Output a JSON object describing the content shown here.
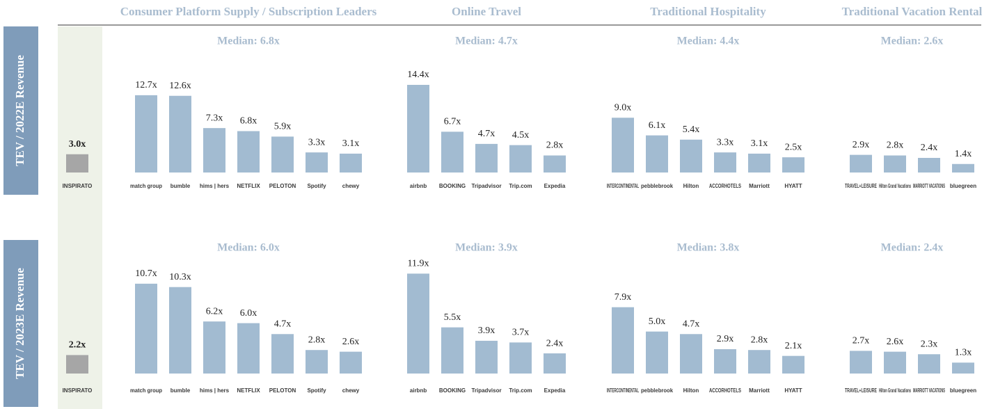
{
  "segments": [
    "Consumer Platform Supply / Subscription Leaders",
    "Online Travel",
    "Traditional Hospitality",
    "Traditional Vacation Rental"
  ],
  "color": "#a2bbd1",
  "base_color": "#a6a6a6",
  "chart_data": [
    {
      "type": "bar",
      "y_label": "TEV / 2022E Revenue",
      "ylim": [
        0,
        16
      ],
      "base": {
        "category": "INSPIRATO",
        "value": 3.0,
        "value_label": "3.0x"
      },
      "groups": [
        {
          "median": "Median: 6.8x",
          "categories": [
            "match group",
            "bumble",
            "hims | hers",
            "NETFLIX",
            "PELOTON",
            "Spotify",
            "chewy"
          ],
          "values": [
            12.7,
            12.6,
            7.3,
            6.8,
            5.9,
            3.3,
            3.1
          ],
          "value_labels": [
            "12.7x",
            "12.6x",
            "7.3x",
            "6.8x",
            "5.9x",
            "3.3x",
            "3.1x"
          ]
        },
        {
          "median": "Median: 4.7x",
          "categories": [
            "airbnb",
            "BOOKING",
            "Tripadvisor",
            "Trip.com",
            "Expedia"
          ],
          "values": [
            14.4,
            6.7,
            4.7,
            4.5,
            2.8
          ],
          "value_labels": [
            "14.4x",
            "6.7x",
            "4.7x",
            "4.5x",
            "2.8x"
          ]
        },
        {
          "median": "Median: 4.4x",
          "categories": [
            "INTERCONTINENTAL",
            "pebblebrook",
            "Hilton",
            "ACCORHOTELS",
            "Marriott",
            "HYATT"
          ],
          "values": [
            9.0,
            6.1,
            5.4,
            3.3,
            3.1,
            2.5
          ],
          "value_labels": [
            "9.0x",
            "6.1x",
            "5.4x",
            "3.3x",
            "3.1x",
            "2.5x"
          ]
        },
        {
          "median": "Median: 2.6x",
          "categories": [
            "TRAVEL+LEISURE",
            "Hilton Grand Vacations",
            "MARRIOTT VACATIONS",
            "bluegreen"
          ],
          "values": [
            2.9,
            2.8,
            2.4,
            1.4
          ],
          "value_labels": [
            "2.9x",
            "2.8x",
            "2.4x",
            "1.4x"
          ]
        }
      ]
    },
    {
      "type": "bar",
      "y_label": "TEV / 2023E Revenue",
      "ylim": [
        0,
        11.6
      ],
      "base": {
        "category": "INSPIRATO",
        "value": 2.2,
        "value_label": "2.2x"
      },
      "groups": [
        {
          "median": "Median: 6.0x",
          "categories": [
            "match group",
            "bumble",
            "hims | hers",
            "NETFLIX",
            "PELOTON",
            "Spotify",
            "chewy"
          ],
          "values": [
            10.7,
            10.3,
            6.2,
            6.0,
            4.7,
            2.8,
            2.6
          ],
          "value_labels": [
            "10.7x",
            "10.3x",
            "6.2x",
            "6.0x",
            "4.7x",
            "2.8x",
            "2.6x"
          ]
        },
        {
          "median": "Median: 3.9x",
          "categories": [
            "airbnb",
            "BOOKING",
            "Tripadvisor",
            "Trip.com",
            "Expedia"
          ],
          "values": [
            11.9,
            5.5,
            3.9,
            3.7,
            2.4
          ],
          "value_labels": [
            "11.9x",
            "5.5x",
            "3.9x",
            "3.7x",
            "2.4x"
          ]
        },
        {
          "median": "Median: 3.8x",
          "categories": [
            "INTERCONTINENTAL",
            "pebblebrook",
            "Hilton",
            "ACCORHOTELS",
            "Marriott",
            "HYATT"
          ],
          "values": [
            7.9,
            5.0,
            4.7,
            2.9,
            2.8,
            2.1
          ],
          "value_labels": [
            "7.9x",
            "5.0x",
            "4.7x",
            "2.9x",
            "2.8x",
            "2.1x"
          ]
        },
        {
          "median": "Median: 2.4x",
          "categories": [
            "TRAVEL+LEISURE",
            "Hilton Grand Vacations",
            "MARRIOTT VACATIONS",
            "bluegreen"
          ],
          "values": [
            2.7,
            2.6,
            2.3,
            1.3
          ],
          "value_labels": [
            "2.7x",
            "2.6x",
            "2.3x",
            "1.3x"
          ]
        }
      ]
    }
  ]
}
